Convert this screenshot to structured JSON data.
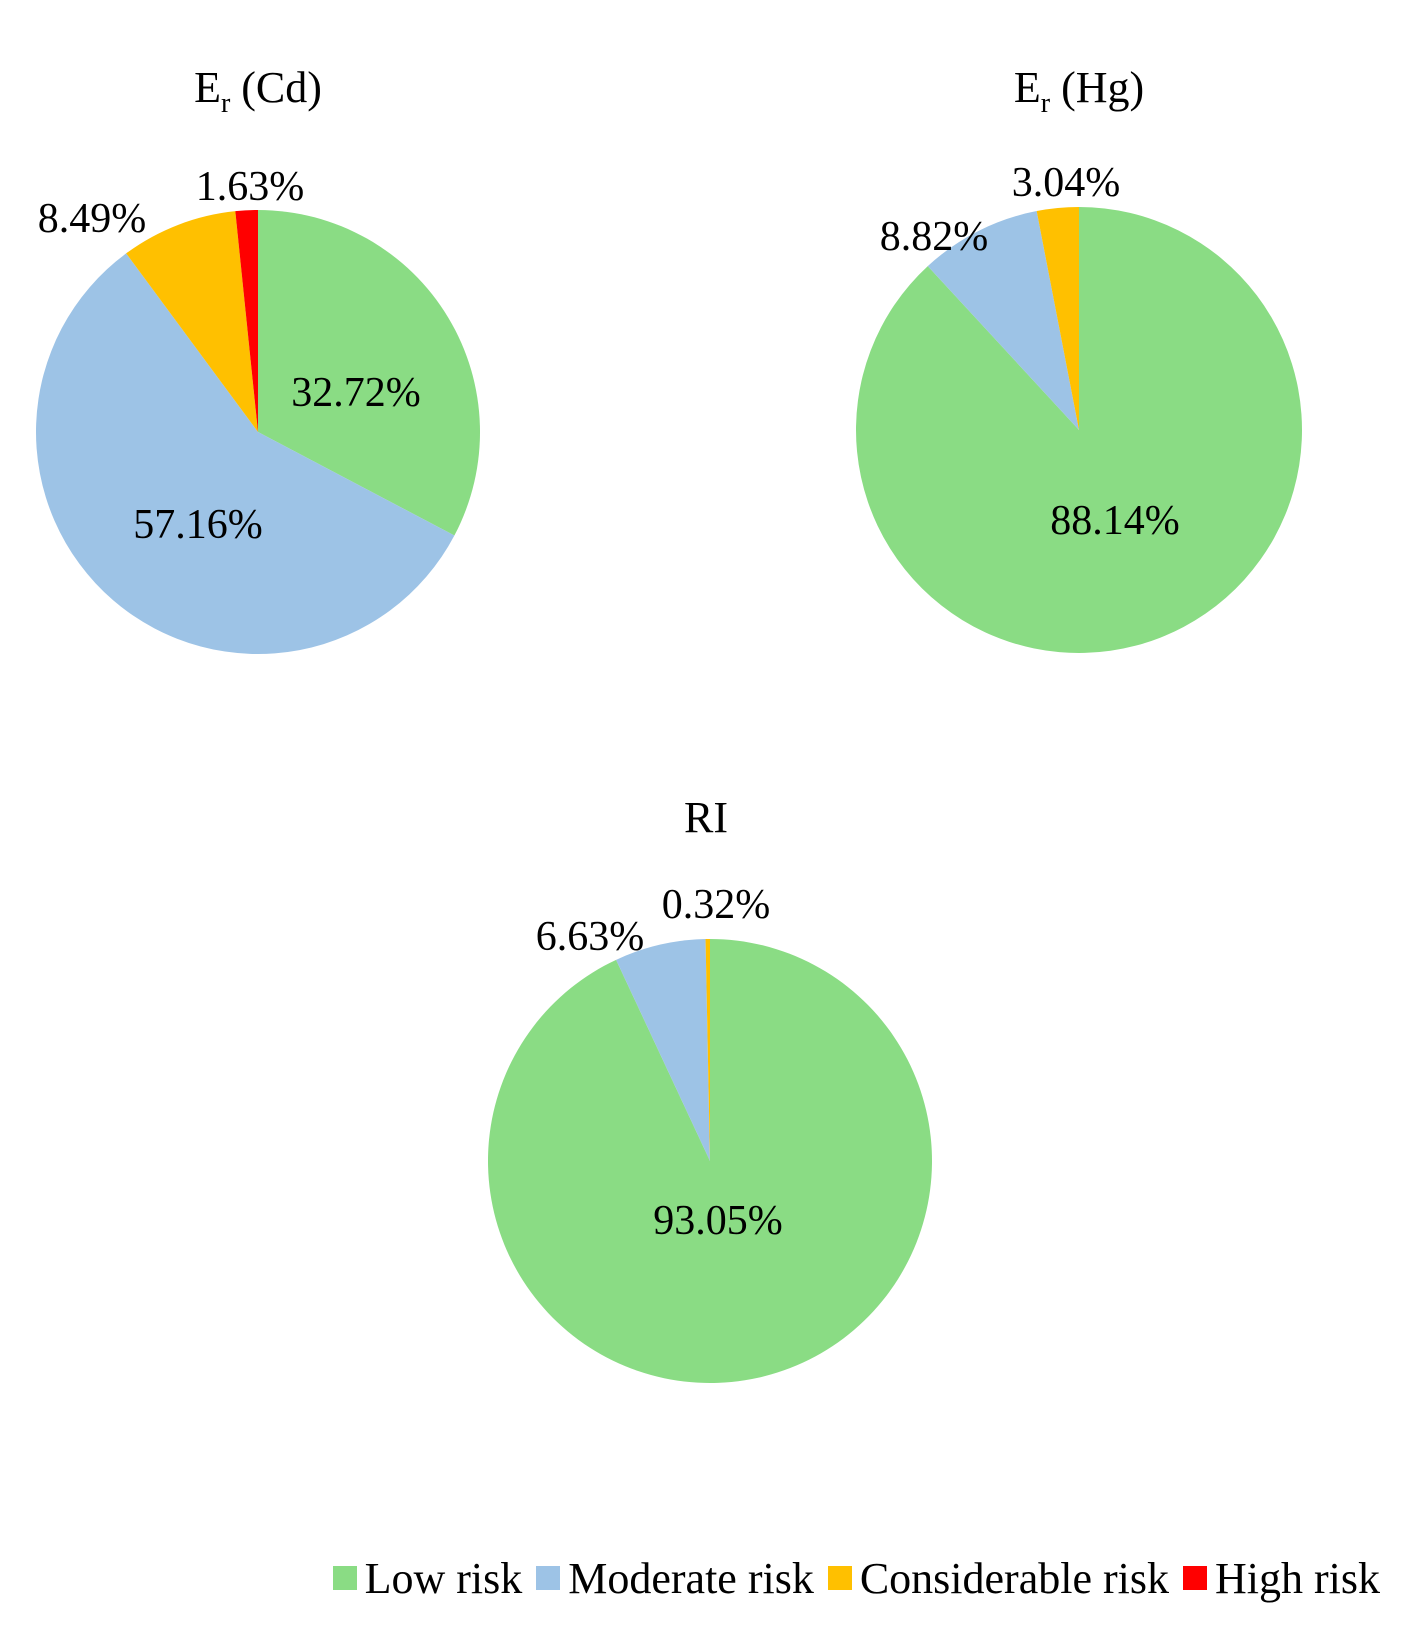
{
  "chart_data": [
    {
      "type": "pie",
      "title_main": "E",
      "title_sub": "r",
      "title_rest": " (Cd)",
      "categories": [
        "Low risk",
        "Moderate risk",
        "Considerable risk",
        "High risk"
      ],
      "values": [
        32.72,
        57.16,
        8.49,
        1.63
      ],
      "labels": [
        "32.72%",
        "57.16%",
        "8.49%",
        "1.63%"
      ]
    },
    {
      "type": "pie",
      "title_main": "E",
      "title_sub": "r",
      "title_rest": " (Hg)",
      "categories": [
        "Low risk",
        "Moderate risk",
        "Considerable risk"
      ],
      "values": [
        88.14,
        8.82,
        3.04
      ],
      "labels": [
        "88.14%",
        "8.82%",
        "3.04%"
      ]
    },
    {
      "type": "pie",
      "title_main": "RI",
      "title_sub": "",
      "title_rest": "",
      "categories": [
        "Low risk",
        "Moderate risk",
        "Considerable risk"
      ],
      "values": [
        93.05,
        6.63,
        0.32
      ],
      "labels": [
        "93.05%",
        "6.63%",
        "0.32%"
      ]
    }
  ],
  "legend": {
    "items": [
      {
        "label": "Low risk",
        "color": "#8ADC84"
      },
      {
        "label": "Moderate risk",
        "color": "#9DC3E6"
      },
      {
        "label": "Considerable risk",
        "color": "#FFC000"
      },
      {
        "label": "High risk",
        "color": "#FF0000"
      }
    ],
    "placement": "bottom"
  },
  "colors": {
    "Low risk": "#8ADC84",
    "Moderate risk": "#9DC3E6",
    "Considerable risk": "#FFC000",
    "High risk": "#FF0000"
  }
}
